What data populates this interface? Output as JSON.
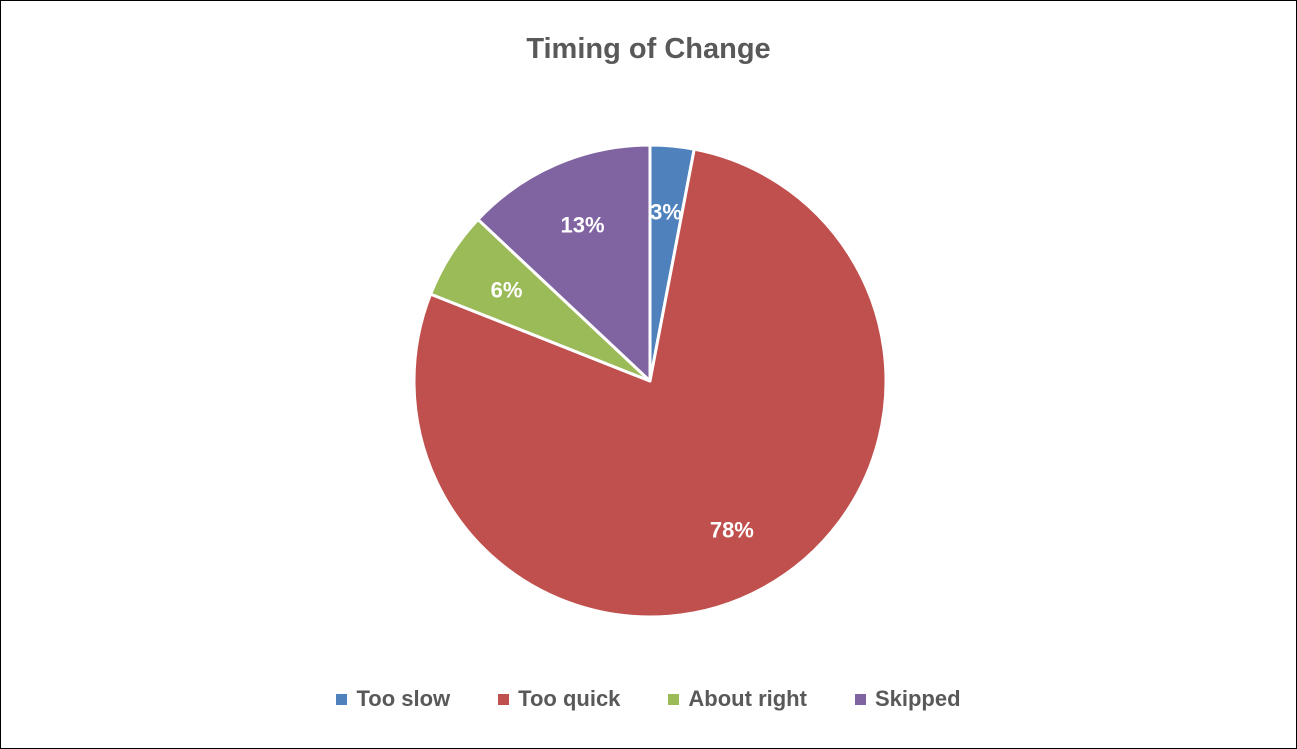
{
  "chart_data": {
    "type": "pie",
    "title": "Timing of Change",
    "categories": [
      "Too slow",
      "Too quick",
      "About right",
      "Skipped"
    ],
    "values": [
      3,
      78,
      6,
      13
    ],
    "data_labels": [
      "3%",
      "78%",
      "6%",
      "13%"
    ],
    "colors": [
      "#4F81BD",
      "#C0504D",
      "#9BBB59",
      "#8064A2"
    ],
    "legend_position": "bottom"
  }
}
